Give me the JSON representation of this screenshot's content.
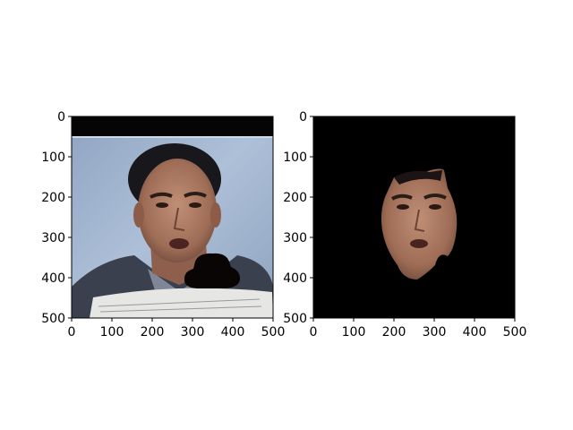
{
  "chart_data": [
    {
      "type": "image",
      "content": "photo of a man's face in front of a blue backdrop, holding a newspaper, with a black blob occluding lower-right of face",
      "xlim": [
        0,
        500
      ],
      "ylim": [
        500,
        0
      ],
      "xticks": [
        0,
        100,
        200,
        300,
        400,
        500
      ],
      "yticks": [
        0,
        100,
        200,
        300,
        400,
        500
      ]
    },
    {
      "type": "image",
      "content": "same face segmented and isolated on a black background (face mask)",
      "xlim": [
        0,
        500
      ],
      "ylim": [
        500,
        0
      ],
      "xticks": [
        0,
        100,
        200,
        300,
        400,
        500
      ],
      "yticks": [
        0,
        100,
        200,
        300,
        400,
        500
      ]
    }
  ],
  "colors": {
    "backdrop": "#9fb3cf",
    "skin": "#b07c64",
    "hair": "#1a1a1f",
    "jacket": "#3e4452",
    "newspaper": "#e8e8e8",
    "occluder": "#0a0505"
  }
}
